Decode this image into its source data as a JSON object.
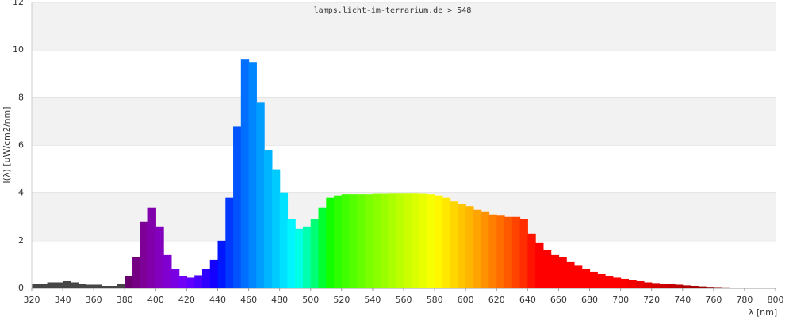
{
  "chart_data": {
    "type": "spectrum",
    "title": "lamps.licht-im-terrarium.de > 548",
    "x_label": "λ [nm]",
    "y_label": "I(λ)  [uW/cm2/nm]",
    "x": [
      320,
      325,
      330,
      335,
      340,
      345,
      350,
      355,
      360,
      365,
      370,
      375,
      380,
      385,
      390,
      395,
      400,
      405,
      410,
      415,
      420,
      425,
      430,
      435,
      440,
      445,
      450,
      455,
      460,
      465,
      470,
      475,
      480,
      485,
      490,
      495,
      500,
      505,
      510,
      515,
      520,
      525,
      530,
      535,
      540,
      545,
      550,
      555,
      560,
      565,
      570,
      575,
      580,
      585,
      590,
      595,
      600,
      605,
      610,
      615,
      620,
      625,
      630,
      635,
      640,
      645,
      650,
      655,
      660,
      665,
      670,
      675,
      680,
      685,
      690,
      695,
      700,
      705,
      710,
      715,
      720,
      725,
      730,
      735,
      740,
      745,
      750,
      755,
      760,
      765
    ],
    "values": [
      0.2,
      0.2,
      0.25,
      0.25,
      0.3,
      0.25,
      0.2,
      0.15,
      0.15,
      0.1,
      0.1,
      0.2,
      0.5,
      1.3,
      2.8,
      3.4,
      2.6,
      1.4,
      0.8,
      0.5,
      0.45,
      0.55,
      0.8,
      1.2,
      2.0,
      3.8,
      6.8,
      9.6,
      9.5,
      7.8,
      5.8,
      5.0,
      4.0,
      2.9,
      2.5,
      2.6,
      2.9,
      3.4,
      3.8,
      3.9,
      3.95,
      3.95,
      3.95,
      3.95,
      3.97,
      3.97,
      3.98,
      3.98,
      3.98,
      3.98,
      3.97,
      3.95,
      3.9,
      3.8,
      3.65,
      3.55,
      3.45,
      3.3,
      3.2,
      3.1,
      3.05,
      3.0,
      3.0,
      2.9,
      2.3,
      1.9,
      1.6,
      1.4,
      1.3,
      1.1,
      0.95,
      0.8,
      0.7,
      0.6,
      0.5,
      0.45,
      0.4,
      0.35,
      0.3,
      0.25,
      0.22,
      0.2,
      0.18,
      0.15,
      0.12,
      0.1,
      0.08,
      0.06,
      0.05,
      0.04
    ],
    "bin_width": 5,
    "xlim": [
      320,
      800
    ],
    "xticks": [
      320,
      340,
      360,
      380,
      400,
      420,
      440,
      460,
      480,
      500,
      520,
      540,
      560,
      580,
      600,
      620,
      640,
      660,
      680,
      700,
      720,
      740,
      760,
      780,
      800
    ],
    "ylim": [
      0,
      12
    ],
    "yticks": [
      0,
      2,
      4,
      6,
      8,
      10,
      12
    ],
    "grid": "banded"
  }
}
